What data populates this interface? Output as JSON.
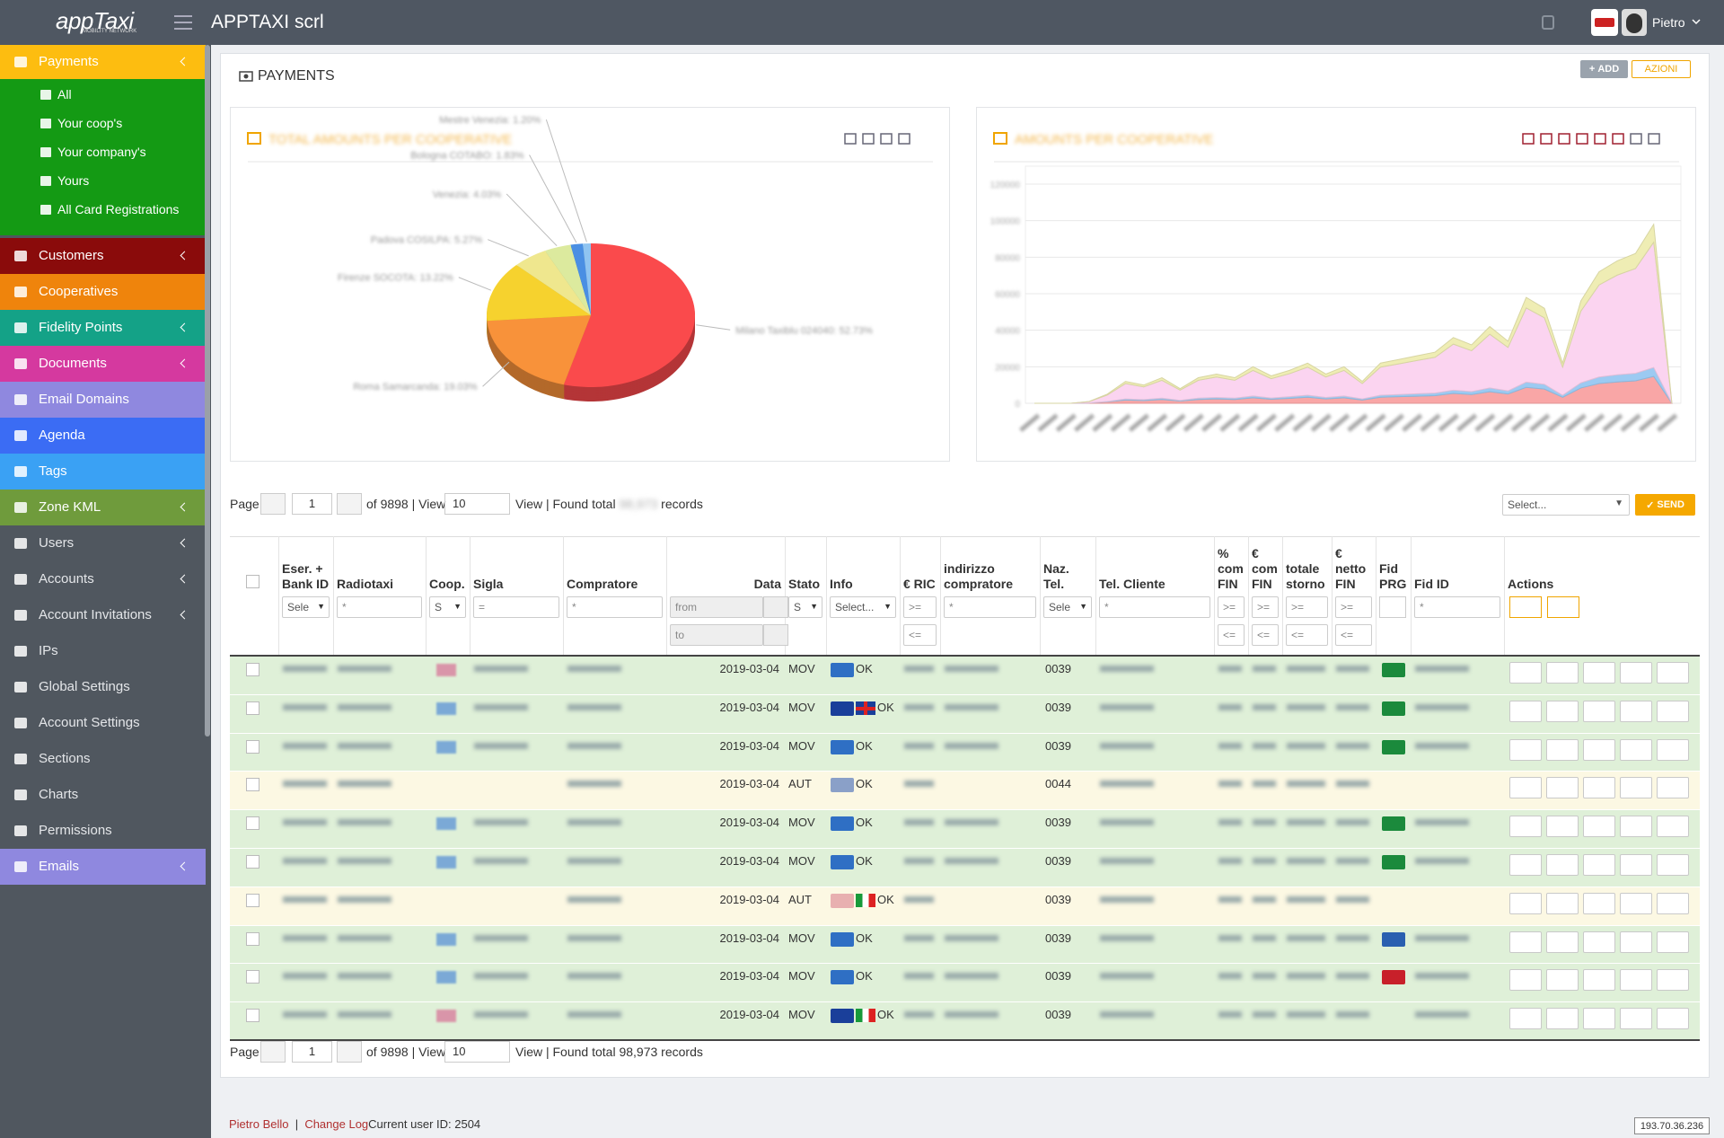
{
  "header": {
    "logo": "appTaxi",
    "logo_tagline": "MOBILITY NETWORK",
    "title": "APPTAXI scrl",
    "user": "Pietro"
  },
  "sidebar": {
    "items": [
      {
        "label": "Payments",
        "color": "#fdbd10",
        "arrow": true
      },
      {
        "label": "Customers",
        "color": "#8a0b0b",
        "arrow": true
      },
      {
        "label": "Cooperatives",
        "color": "#ef840c",
        "arrow": false
      },
      {
        "label": "Fidelity Points",
        "color": "#14a287",
        "arrow": true
      },
      {
        "label": "Documents",
        "color": "#d5399f",
        "arrow": true
      },
      {
        "label": "Email Domains",
        "color": "#8f88df",
        "arrow": false
      },
      {
        "label": "Agenda",
        "color": "#3b6cf4",
        "arrow": false
      },
      {
        "label": "Tags",
        "color": "#3aa1f4",
        "arrow": false
      },
      {
        "label": "Zone KML",
        "color": "#6f9b3c",
        "arrow": true
      },
      {
        "label": "Users",
        "color": null,
        "arrow": true
      },
      {
        "label": "Accounts",
        "color": null,
        "arrow": true
      },
      {
        "label": "Account Invitations",
        "color": null,
        "arrow": true
      },
      {
        "label": "IPs",
        "color": null,
        "arrow": false
      },
      {
        "label": "Global Settings",
        "color": null,
        "arrow": false
      },
      {
        "label": "Account Settings",
        "color": null,
        "arrow": false
      },
      {
        "label": "Sections",
        "color": null,
        "arrow": false
      },
      {
        "label": "Charts",
        "color": null,
        "arrow": false
      },
      {
        "label": "Permissions",
        "color": null,
        "arrow": false
      },
      {
        "label": "Emails",
        "color": "#8f88df",
        "arrow": true
      }
    ],
    "submenu": [
      "All",
      "Your coop's",
      "Your company's",
      "Yours",
      "All Card Registrations"
    ],
    "submenu_color": "#149a14"
  },
  "page": {
    "title": "PAYMENTS",
    "add": "ADD",
    "actions": "AZIONI"
  },
  "chart_data": [
    {
      "type": "pie",
      "title": "TOTAL AMOUNTS PER COOPERATIVE",
      "values": [
        52.73,
        19.03,
        13.22,
        5.27,
        4.03,
        1.83,
        1.2
      ],
      "value_labels": [
        "Milano Taxiblu 024040: 52.73%",
        "Roma Samarcanda: 19.03%",
        "Firenze SOCOTA: 13.22%",
        "Padova COSILPA: 5.27%",
        "Venezia: 4.03%",
        "Bologna COTABO: 1.83%",
        "Mestre Venezia: 1.20%"
      ],
      "colors": [
        "#fa4a4c",
        "#f8923a",
        "#f6d22e",
        "#efe78e",
        "#dcea9e",
        "#4a8fe3",
        "#8fc4f1"
      ]
    },
    {
      "type": "area",
      "title": "AMOUNTS PER COOPERATIVE",
      "stacked": true,
      "categories": [
        null,
        null,
        null,
        null,
        null,
        null,
        null,
        null,
        null,
        null,
        null,
        null,
        null,
        null,
        null,
        null,
        null,
        null,
        null,
        null,
        null,
        null,
        null,
        null,
        null,
        null,
        null,
        null,
        null,
        null,
        null,
        null,
        null,
        null,
        null,
        null
      ],
      "series": [
        {
          "color": "#f9a6a6",
          "values": [
            0,
            0,
            0,
            200,
            800,
            1800,
            1500,
            2100,
            1200,
            2100,
            2400,
            2100,
            3000,
            2200,
            2700,
            3300,
            2400,
            3000,
            1800,
            3300,
            3600,
            3900,
            4200,
            5400,
            4800,
            6300,
            5100,
            8700,
            7800,
            3300,
            8400,
            10800,
            11700,
            12300,
            14700,
            0
          ]
        },
        {
          "color": "#9ccaf2",
          "values": [
            0,
            0,
            0,
            0,
            200,
            600,
            500,
            700,
            400,
            700,
            800,
            700,
            1000,
            700,
            900,
            1100,
            800,
            1000,
            600,
            1100,
            1200,
            1300,
            1400,
            1800,
            1600,
            2100,
            1700,
            2900,
            2600,
            1100,
            2800,
            3600,
            3900,
            4100,
            4900,
            0
          ]
        },
        {
          "color": "#fbd4f0",
          "values": [
            0,
            0,
            0,
            700,
            3500,
            8400,
            7000,
            9800,
            5600,
            9800,
            11200,
            9800,
            14000,
            10600,
            12600,
            15400,
            11200,
            14000,
            8400,
            15400,
            16800,
            18200,
            19600,
            25200,
            22400,
            29400,
            23800,
            40600,
            36400,
            15400,
            39200,
            50400,
            54600,
            57400,
            68600,
            0
          ]
        },
        {
          "color": "#efedb4",
          "values": [
            0,
            0,
            0,
            100,
            500,
            1200,
            1000,
            1400,
            800,
            1400,
            1600,
            1400,
            2000,
            1500,
            1800,
            2200,
            1600,
            2000,
            1200,
            2200,
            2400,
            2600,
            2800,
            3600,
            3200,
            4200,
            3400,
            5800,
            5200,
            2200,
            5600,
            7200,
            7800,
            8200,
            9800,
            0
          ]
        }
      ],
      "ylim": [
        0,
        120000
      ],
      "yticks": [
        0,
        20000,
        40000,
        60000,
        80000,
        100000,
        120000
      ],
      "grid": true
    }
  ],
  "pager": {
    "page": "Page",
    "current": "1",
    "of": "of 9898 | View",
    "view": "10",
    "found": "View | Found total",
    "total": "98,973",
    "records": "records"
  },
  "bulk": {
    "select": "Select...",
    "send": "SEND"
  },
  "table": {
    "columns": [
      null,
      "Eser. + Bank ID",
      "Radiotaxi",
      "Coop.",
      "Sigla",
      "Compratore",
      "Data",
      "Stato",
      "Info",
      "€ RIC",
      "indirizzo compratore",
      "Naz. Tel.",
      "Tel. Cliente",
      "% com FIN",
      "€ com FIN",
      "totale storno",
      "€ netto FIN",
      "Fid PRG",
      "Fid ID",
      "Actions"
    ],
    "filters": [
      [
        null,
        "Sele",
        "*",
        "S",
        "=",
        "*",
        "from",
        "S",
        "Select...",
        ">=",
        "*",
        "Sele",
        "*",
        ">=",
        ">=",
        ">=",
        ">=",
        null,
        "*",
        null
      ],
      [
        null,
        null,
        null,
        null,
        null,
        null,
        "to",
        null,
        null,
        "<=",
        null,
        null,
        null,
        "<=",
        "<=",
        "<=",
        "<=",
        null,
        null,
        null
      ]
    ],
    "rows": [
      {
        "data": "2019-03-04",
        "stato": "MOV",
        "info": "OK",
        "naz": "0039",
        "coop": "#d65a8a",
        "card": "#2f6fc4",
        "flag": null,
        "fid": "#1b8a3c"
      },
      {
        "data": "2019-03-04",
        "stato": "MOV",
        "info": "OK",
        "naz": "0039",
        "coop": "#3a7bd5",
        "card": "#1a3f9a",
        "flag": "uk",
        "fid": "#1b8a3c"
      },
      {
        "data": "2019-03-04",
        "stato": "MOV",
        "info": "OK",
        "naz": "0039",
        "coop": "#3a7bd5",
        "card": "#2f6fc4",
        "flag": null,
        "fid": "#1b8a3c"
      },
      {
        "data": "2019-03-04",
        "stato": "AUT",
        "info": "OK",
        "naz": "0044",
        "coop": null,
        "card": "#8aa0c8",
        "flag": null,
        "fid": null
      },
      {
        "data": "2019-03-04",
        "stato": "MOV",
        "info": "OK",
        "naz": "0039",
        "coop": "#3a7bd5",
        "card": "#2f6fc4",
        "flag": null,
        "fid": "#1b8a3c"
      },
      {
        "data": "2019-03-04",
        "stato": "MOV",
        "info": "OK",
        "naz": "0039",
        "coop": "#3a7bd5",
        "card": "#2f6fc4",
        "flag": null,
        "fid": "#1b8a3c"
      },
      {
        "data": "2019-03-04",
        "stato": "AUT",
        "info": "OK",
        "naz": "0039",
        "coop": null,
        "card": "#e8b0b0",
        "flag": "it",
        "fid": null
      },
      {
        "data": "2019-03-04",
        "stato": "MOV",
        "info": "OK",
        "naz": "0039",
        "coop": "#3a7bd5",
        "card": "#2f6fc4",
        "flag": null,
        "fid": "#2a5fb0"
      },
      {
        "data": "2019-03-04",
        "stato": "MOV",
        "info": "OK",
        "naz": "0039",
        "coop": "#3a7bd5",
        "card": "#2f6fc4",
        "flag": null,
        "fid": "#c8202a"
      },
      {
        "data": "2019-03-04",
        "stato": "MOV",
        "info": "OK",
        "naz": "0039",
        "coop": "#d65a8a",
        "card": "#1a3f9a",
        "flag": "it",
        "fid": null
      }
    ]
  },
  "footer": {
    "user": "Pietro Bello",
    "changelog": "Change Log",
    "user_id": "Current user ID: 2504",
    "ip": "193.70.36.236"
  }
}
